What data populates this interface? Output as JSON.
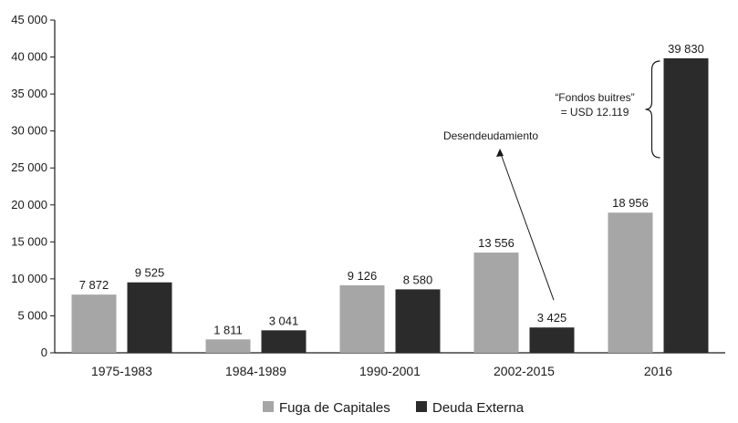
{
  "chart_data": {
    "type": "bar",
    "categories": [
      "1975-1983",
      "1984-1989",
      "1990-2001",
      "2002-2015",
      "2016"
    ],
    "series": [
      {
        "name": "Fuga de Capitales",
        "color": "#a6a6a6",
        "values": [
          7872,
          1811,
          9126,
          13556,
          18956
        ],
        "labels": [
          "7 872",
          "1 811",
          "9 126",
          "13 556",
          "18 956"
        ]
      },
      {
        "name": "Deuda Externa",
        "color": "#2b2b2b",
        "values": [
          9525,
          3041,
          8580,
          3425,
          39830
        ],
        "labels": [
          "9 525",
          "3 041",
          "8 580",
          "3 425",
          "39 830"
        ]
      }
    ],
    "ylim": [
      0,
      45000
    ],
    "yticks": [
      0,
      5000,
      10000,
      15000,
      20000,
      25000,
      30000,
      35000,
      40000,
      45000
    ],
    "ytick_labels": [
      "0",
      "5 000",
      "10 000",
      "15 000",
      "20 000",
      "25 000",
      "30 000",
      "35 000",
      "40 000",
      "45 000"
    ],
    "legend_position": "bottom",
    "grid": false,
    "annotations": {
      "desendeudamiento": {
        "text": "Desendeudamiento",
        "category": "2002-2015",
        "series": "Deuda Externa"
      },
      "fondos_buitres": {
        "lines": [
          "“Fondos buitres”",
          "= USD 12.119"
        ],
        "category": "2016",
        "series": "Deuda Externa"
      }
    }
  }
}
